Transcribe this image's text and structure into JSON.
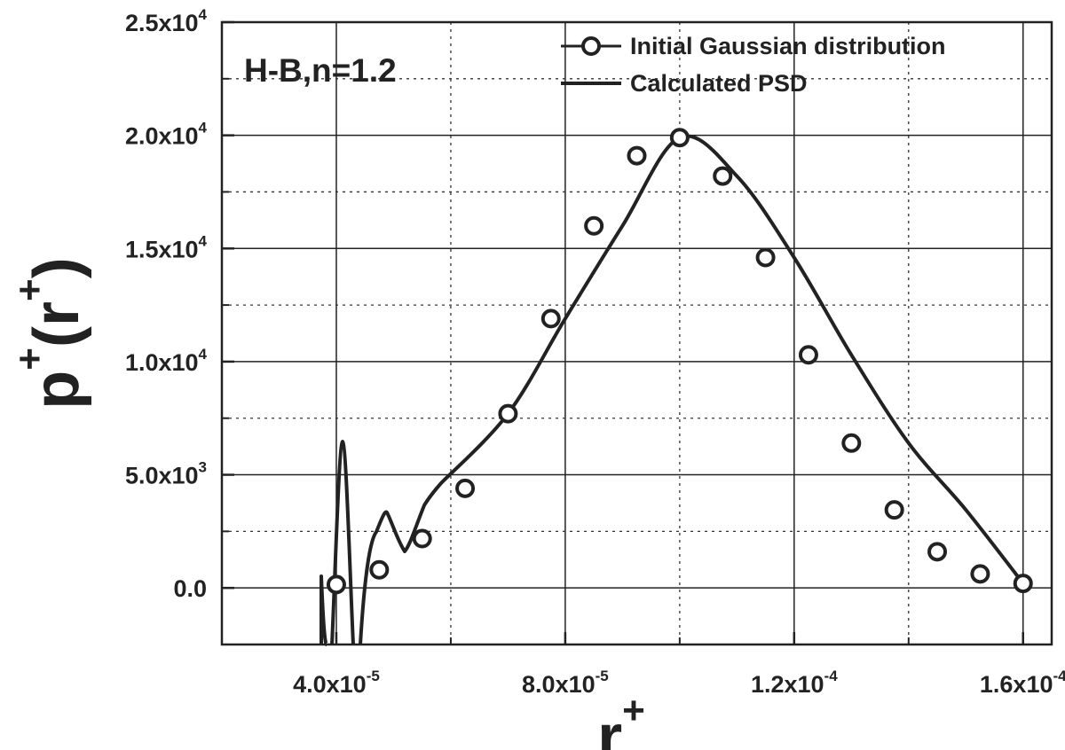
{
  "chart_data": {
    "type": "line",
    "annotation": "H-B,n=1.2",
    "xlabel": "r",
    "xlabel_sup": "+",
    "ylabel_main": "p",
    "ylabel_sup": "+",
    "ylabel_arg": "(r",
    "ylabel_arg_sup": "+",
    "ylabel_close": ")",
    "xlim": [
      2e-05,
      0.000165
    ],
    "ylim": [
      -2500,
      25000
    ],
    "x_ticks": [
      {
        "value": 4e-05,
        "mantissa": "4.0x10",
        "exp": "-5"
      },
      {
        "value": 8e-05,
        "mantissa": "8.0x10",
        "exp": "-5"
      },
      {
        "value": 0.00012,
        "mantissa": "1.2x10",
        "exp": "-4"
      },
      {
        "value": 0.00016,
        "mantissa": "1.6x10",
        "exp": "-4"
      }
    ],
    "x_minor_grid": [
      6e-05,
      0.0001,
      0.00014
    ],
    "y_ticks": [
      {
        "value": 0,
        "mantissa": "0.0",
        "exp": ""
      },
      {
        "value": 5000,
        "mantissa": "5.0x10",
        "exp": "3"
      },
      {
        "value": 10000,
        "mantissa": "1.0x10",
        "exp": "4"
      },
      {
        "value": 15000,
        "mantissa": "1.5x10",
        "exp": "4"
      },
      {
        "value": 20000,
        "mantissa": "2.0x10",
        "exp": "4"
      },
      {
        "value": 25000,
        "mantissa": "2.5x10",
        "exp": "4"
      }
    ],
    "y_minor_grid": [
      2500,
      7500,
      12500,
      17500,
      22500
    ],
    "grid": true,
    "legend": {
      "placement": "top-right",
      "entries": [
        {
          "label": "Initial Gaussian distribution",
          "style": "line-circle"
        },
        {
          "label": "Calculated PSD",
          "style": "line"
        }
      ]
    },
    "series": [
      {
        "name": "Initial Gaussian distribution",
        "style": "circles",
        "x": [
          4e-05,
          4.75e-05,
          5.5e-05,
          6.25e-05,
          7e-05,
          7.75e-05,
          8.5e-05,
          9.25e-05,
          0.0001,
          0.0001075,
          0.000115,
          0.0001225,
          0.00013,
          0.0001375,
          0.000145,
          0.0001525,
          0.00016
        ],
        "y": [
          150,
          800,
          2180,
          4400,
          7700,
          11900,
          16000,
          19100,
          19900,
          18200,
          14600,
          10300,
          6400,
          3450,
          1600,
          620,
          200
        ]
      },
      {
        "name": "Calculated PSD",
        "style": "line",
        "x": [
          7e-05,
          8e-05,
          9e-05,
          0.0001,
          0.00011,
          0.00012,
          0.00013,
          0.00014,
          0.00015,
          0.00016
        ],
        "y": [
          7700,
          11900,
          16000,
          19900,
          18200,
          14600,
          10300,
          6400,
          3450,
          200
        ]
      }
    ]
  }
}
